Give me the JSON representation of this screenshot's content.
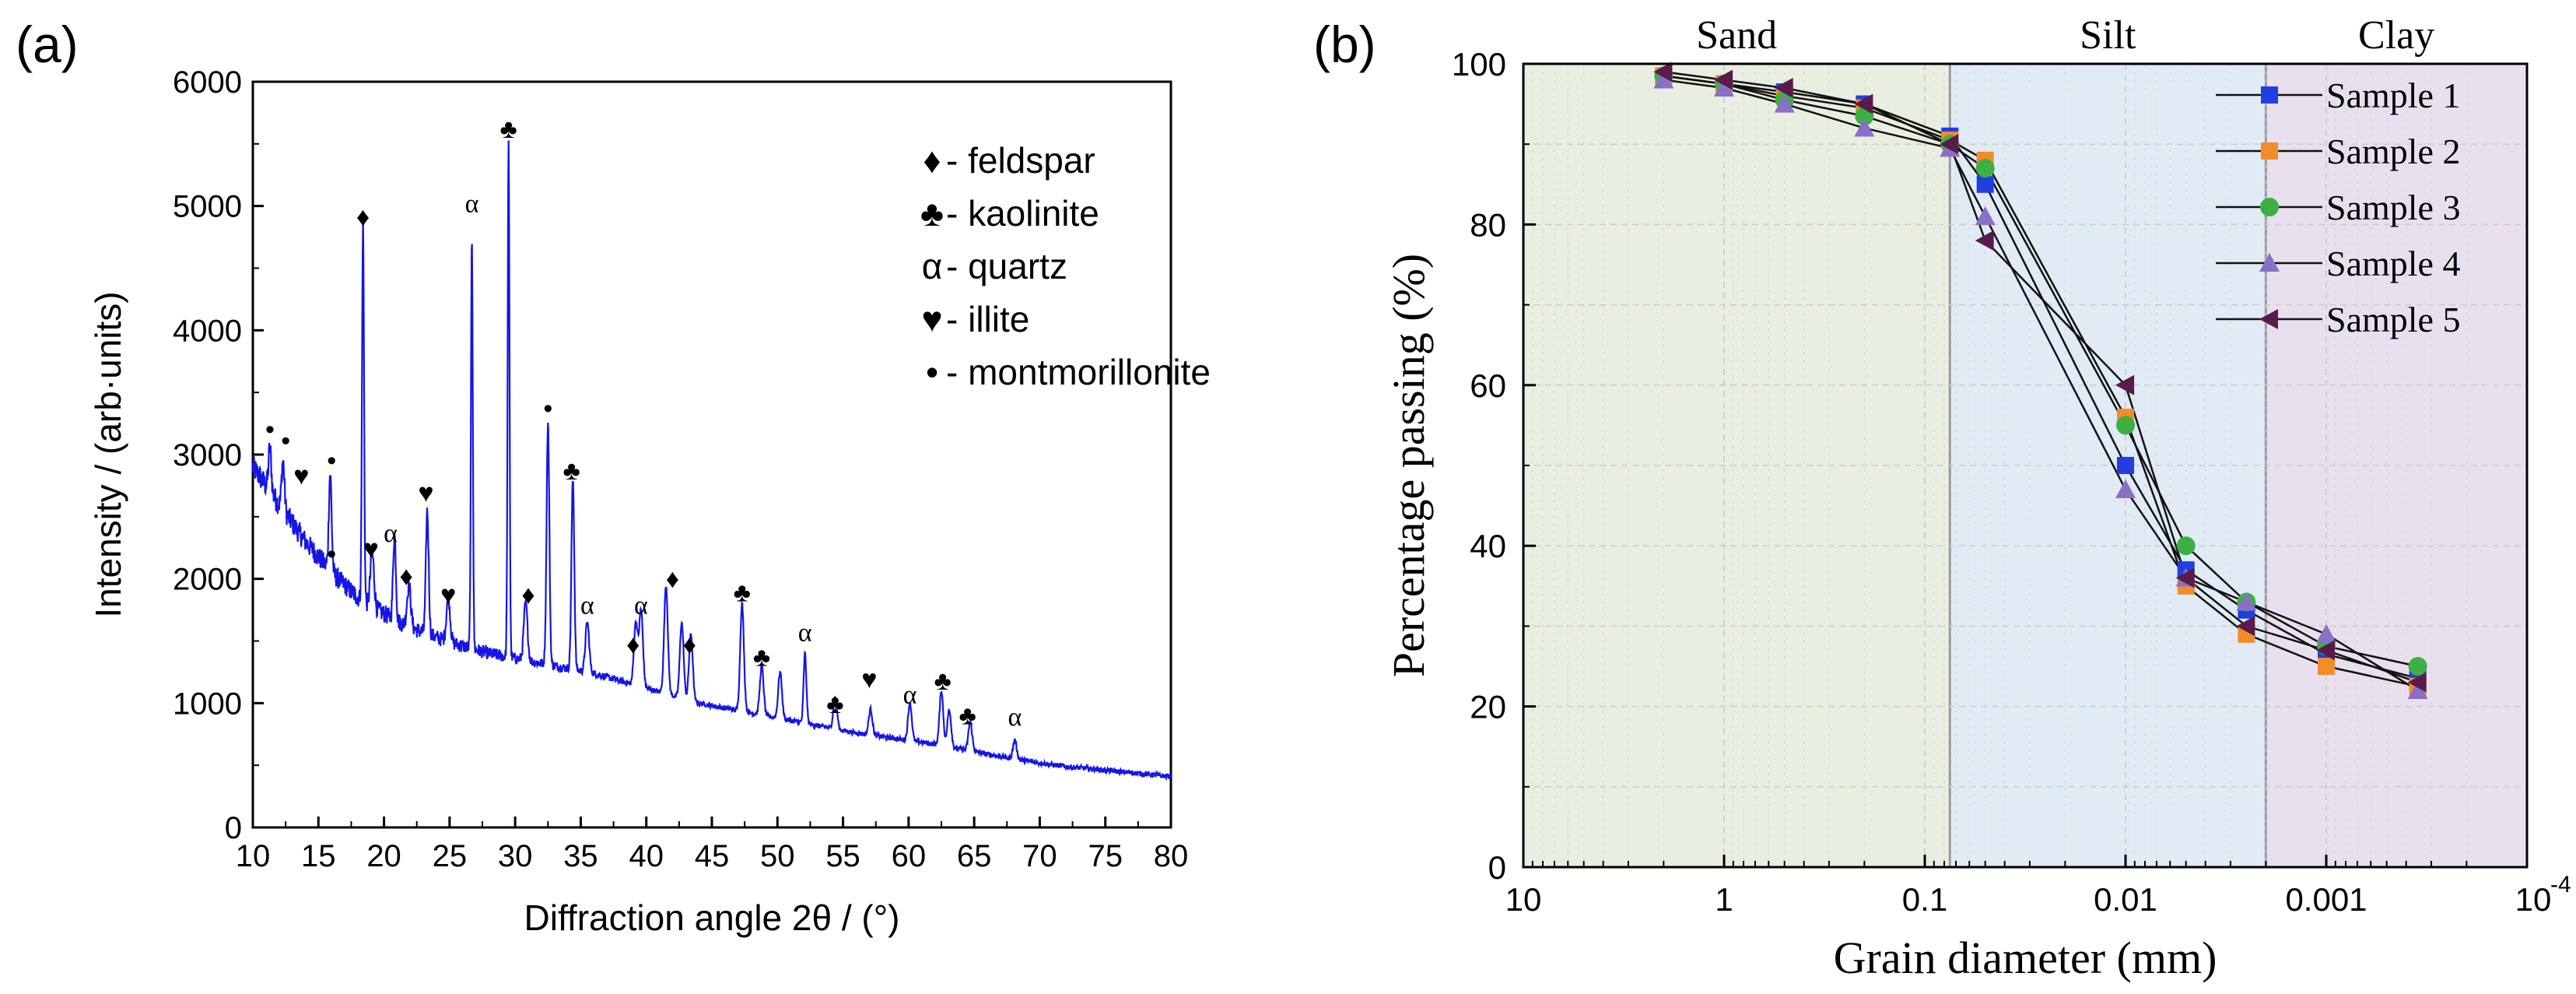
{
  "panels": {
    "a": {
      "tag": "(a)",
      "chart_data": {
        "type": "line",
        "title": "",
        "xlabel": "Diffraction angle 2θ / (°)",
        "ylabel": "Intensity / (arb·units)",
        "xlim": [
          10,
          80
        ],
        "ylim": [
          0,
          6000
        ],
        "xticks": [
          "10",
          "15",
          "20",
          "25",
          "30",
          "35",
          "40",
          "45",
          "50",
          "55",
          "60",
          "65",
          "70",
          "75",
          "80"
        ],
        "yticks": [
          "0",
          "1000",
          "2000",
          "3000",
          "4000",
          "5000",
          "6000"
        ],
        "color": "#1515e6",
        "baseline": [
          [
            10,
            2900
          ],
          [
            11,
            2750
          ],
          [
            12,
            2600
          ],
          [
            13,
            2450
          ],
          [
            14,
            2300
          ],
          [
            15,
            2180
          ],
          [
            16,
            2050
          ],
          [
            17,
            1950
          ],
          [
            18,
            1850
          ],
          [
            19,
            1780
          ],
          [
            20,
            1720
          ],
          [
            21,
            1660
          ],
          [
            22,
            1610
          ],
          [
            23,
            1570
          ],
          [
            24,
            1530
          ],
          [
            25,
            1490
          ],
          [
            26,
            1460
          ],
          [
            27,
            1430
          ],
          [
            28,
            1400
          ],
          [
            29,
            1380
          ],
          [
            30,
            1360
          ],
          [
            31,
            1340
          ],
          [
            32,
            1320
          ],
          [
            33,
            1300
          ],
          [
            34,
            1280
          ],
          [
            35,
            1260
          ],
          [
            36,
            1240
          ],
          [
            37,
            1210
          ],
          [
            38,
            1180
          ],
          [
            39,
            1150
          ],
          [
            40,
            1120
          ],
          [
            41,
            1090
          ],
          [
            42,
            1060
          ],
          [
            43,
            1030
          ],
          [
            44,
            1000
          ],
          [
            45,
            980
          ],
          [
            46,
            960
          ],
          [
            47,
            940
          ],
          [
            48,
            920
          ],
          [
            49,
            900
          ],
          [
            50,
            880
          ],
          [
            51,
            860
          ],
          [
            52,
            840
          ],
          [
            53,
            820
          ],
          [
            54,
            800
          ],
          [
            55,
            780
          ],
          [
            56,
            760
          ],
          [
            57,
            745
          ],
          [
            58,
            730
          ],
          [
            59,
            715
          ],
          [
            60,
            700
          ],
          [
            61,
            685
          ],
          [
            62,
            670
          ],
          [
            63,
            650
          ],
          [
            64,
            630
          ],
          [
            65,
            610
          ],
          [
            66,
            590
          ],
          [
            67,
            570
          ],
          [
            68,
            550
          ],
          [
            69,
            535
          ],
          [
            70,
            520
          ],
          [
            71,
            505
          ],
          [
            72,
            490
          ],
          [
            73,
            480
          ],
          [
            74,
            470
          ],
          [
            75,
            460
          ],
          [
            76,
            450
          ],
          [
            77,
            440
          ],
          [
            78,
            430
          ],
          [
            79,
            420
          ],
          [
            80,
            410
          ]
        ],
        "peaks": [
          [
            11.3,
            3050,
            0.15
          ],
          [
            12.3,
            2950,
            0.15
          ],
          [
            15.9,
            2850,
            0.15
          ],
          [
            18.4,
            4850,
            0.11
          ],
          [
            19.1,
            2200,
            0.2
          ],
          [
            20.8,
            2350,
            0.15
          ],
          [
            21.9,
            1950,
            0.2
          ],
          [
            23.3,
            2550,
            0.15
          ],
          [
            24.9,
            1850,
            0.2
          ],
          [
            26.7,
            4750,
            0.1
          ],
          [
            29.5,
            5500,
            0.1
          ],
          [
            30.8,
            1800,
            0.2
          ],
          [
            32.5,
            3250,
            0.15
          ],
          [
            34.4,
            2800,
            0.15
          ],
          [
            35.5,
            1650,
            0.2
          ],
          [
            39.2,
            1650,
            0.2
          ],
          [
            39.6,
            1750,
            0.2
          ],
          [
            41.5,
            1950,
            0.2
          ],
          [
            42.7,
            1650,
            0.2
          ],
          [
            43.4,
            1550,
            0.2
          ],
          [
            47.3,
            1800,
            0.2
          ],
          [
            48.8,
            1300,
            0.2
          ],
          [
            50.2,
            1250,
            0.2
          ],
          [
            52.1,
            1400,
            0.15
          ],
          [
            54.4,
            1050,
            0.2
          ],
          [
            57.1,
            950,
            0.2
          ],
          [
            60.1,
            1000,
            0.2
          ],
          [
            62.5,
            1100,
            0.2
          ],
          [
            63.1,
            950,
            0.2
          ],
          [
            64.7,
            850,
            0.2
          ],
          [
            68.1,
            700,
            0.2
          ]
        ],
        "annotations": [
          {
            "x": 11.3,
            "y": 3130,
            "mark": "•",
            "mineral": "montmorillonite"
          },
          {
            "x": 12.5,
            "y": 3040,
            "mark": "•",
            "mineral": "montmorillonite"
          },
          {
            "x": 13.7,
            "y": 2760,
            "mark": "♥",
            "mineral": "illite"
          },
          {
            "x": 16.0,
            "y": 2130,
            "mark": "•",
            "mineral": "montmorillonite"
          },
          {
            "x": 16.0,
            "y": 2880,
            "mark": "•",
            "mineral": "montmorillonite"
          },
          {
            "x": 18.4,
            "y": 4840,
            "mark": "♦",
            "mineral": "feldspar"
          },
          {
            "x": 19.0,
            "y": 2170,
            "mark": "♥",
            "mineral": "illite"
          },
          {
            "x": 20.5,
            "y": 2300,
            "mark": "α",
            "mineral": "quartz"
          },
          {
            "x": 21.7,
            "y": 1950,
            "mark": "♦",
            "mineral": "feldspar"
          },
          {
            "x": 23.2,
            "y": 2620,
            "mark": "♥",
            "mineral": "illite"
          },
          {
            "x": 24.9,
            "y": 1800,
            "mark": "♥",
            "mineral": "illite"
          },
          {
            "x": 26.7,
            "y": 4950,
            "mark": "α",
            "mineral": "quartz"
          },
          {
            "x": 29.5,
            "y": 5550,
            "mark": "♣",
            "mineral": "kaolinite"
          },
          {
            "x": 31.0,
            "y": 1800,
            "mark": "♦",
            "mineral": "feldspar"
          },
          {
            "x": 32.5,
            "y": 3300,
            "mark": "•",
            "mineral": "montmorillonite"
          },
          {
            "x": 34.3,
            "y": 2800,
            "mark": "♣",
            "mineral": "kaolinite"
          },
          {
            "x": 35.5,
            "y": 1720,
            "mark": "α",
            "mineral": "quartz"
          },
          {
            "x": 39.0,
            "y": 1400,
            "mark": "♦",
            "mineral": "feldspar"
          },
          {
            "x": 39.6,
            "y": 1720,
            "mark": "α",
            "mineral": "quartz"
          },
          {
            "x": 42.0,
            "y": 1930,
            "mark": "♦",
            "mineral": "feldspar"
          },
          {
            "x": 43.3,
            "y": 1400,
            "mark": "♦",
            "mineral": "feldspar"
          },
          {
            "x": 47.3,
            "y": 1820,
            "mark": "♣",
            "mineral": "kaolinite"
          },
          {
            "x": 48.8,
            "y": 1300,
            "mark": "♣",
            "mineral": "kaolinite"
          },
          {
            "x": 52.1,
            "y": 1500,
            "mark": "α",
            "mineral": "quartz"
          },
          {
            "x": 54.4,
            "y": 920,
            "mark": "♣",
            "mineral": "kaolinite"
          },
          {
            "x": 57.0,
            "y": 1120,
            "mark": "♥",
            "mineral": "illite"
          },
          {
            "x": 60.1,
            "y": 1000,
            "mark": "α",
            "mineral": "quartz"
          },
          {
            "x": 62.6,
            "y": 1110,
            "mark": "♣",
            "mineral": "kaolinite"
          },
          {
            "x": 64.5,
            "y": 830,
            "mark": "♣",
            "mineral": "kaolinite"
          },
          {
            "x": 68.1,
            "y": 820,
            "mark": "α",
            "mineral": "quartz"
          }
        ],
        "legend": [
          {
            "symbol": "♦",
            "label": " - feldspar"
          },
          {
            "symbol": "♣",
            "label": " - kaolinite"
          },
          {
            "symbol": "α",
            "label": " - quartz"
          },
          {
            "symbol": "♥",
            "label": " - illite"
          },
          {
            "symbol": "•",
            "label": " - montmorillonite"
          }
        ]
      }
    },
    "b": {
      "tag": "(b)",
      "chart_data": {
        "type": "line",
        "title": "",
        "xlabel": "Grain diameter (mm)",
        "ylabel": "Percentage passing (%)",
        "xscale": "log-reversed",
        "xlim": [
          10,
          0.0001
        ],
        "ylim": [
          0,
          100
        ],
        "xticks": [
          "10",
          "1",
          "0.1",
          "0.01",
          "0.001",
          "10"
        ],
        "xtick_last_sup": "-4",
        "yticks": [
          "0",
          "20",
          "40",
          "60",
          "80",
          "100"
        ],
        "regions": [
          {
            "label": "Sand",
            "from": 10,
            "to": 0.075,
            "color": "#e8eee0"
          },
          {
            "label": "Silt",
            "from": 0.075,
            "to": 0.002,
            "color": "#e0ebf5"
          },
          {
            "label": "Clay",
            "from": 0.002,
            "to": 0.0001,
            "color": "#e8e0ee"
          }
        ],
        "x": [
          2,
          1,
          0.5,
          0.2,
          0.075,
          0.05,
          0.01,
          0.005,
          0.0025,
          0.001,
          0.00035
        ],
        "series": [
          {
            "name": "Sample 1",
            "color": "#1f3fe0",
            "marker": "square",
            "values": [
              98.5,
              97.5,
              96.5,
              95.0,
              91.0,
              85.0,
              50.0,
              37.0,
              32.0,
              26.5,
              23.5
            ]
          },
          {
            "name": "Sample 2",
            "color": "#f28c28",
            "marker": "square",
            "values": [
              98.5,
              97.5,
              96.0,
              94.5,
              90.5,
              88.0,
              56.0,
              35.0,
              29.0,
              25.0,
              22.5
            ]
          },
          {
            "name": "Sample 3",
            "color": "#3cb043",
            "marker": "circle",
            "values": [
              98.5,
              97.5,
              95.5,
              93.5,
              90.0,
              87.0,
              55.0,
              40.0,
              33.0,
              27.5,
              25.0
            ]
          },
          {
            "name": "Sample 4",
            "color": "#8a6fc6",
            "marker": "triangle-up",
            "values": [
              98.0,
              97.0,
              95.0,
              92.0,
              89.5,
              81.0,
              47.0,
              36.0,
              33.0,
              29.0,
              22.0
            ]
          },
          {
            "name": "Sample 5",
            "color": "#5a1a4a",
            "marker": "triangle-left",
            "values": [
              99.0,
              98.0,
              97.0,
              95.0,
              90.0,
              78.0,
              60.0,
              36.0,
              30.0,
              27.0,
              23.0
            ]
          }
        ]
      }
    }
  }
}
